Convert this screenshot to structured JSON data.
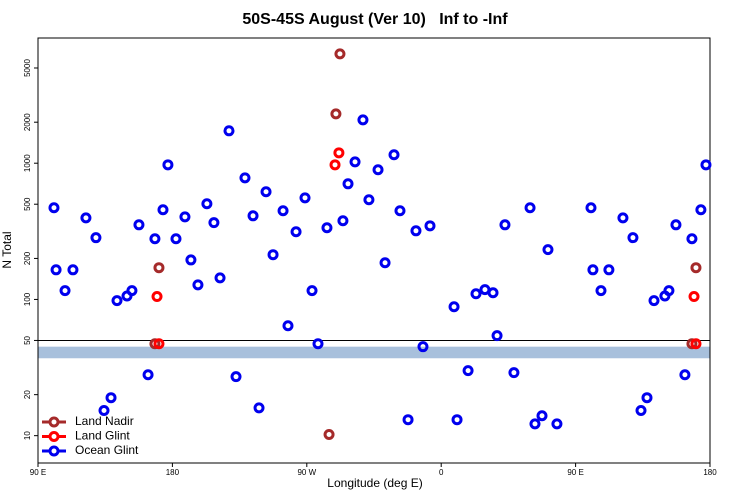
{
  "chart_data": {
    "type": "scatter",
    "title": "50S-45S August (Ver 10)   Inf to -Inf",
    "xlabel": "Longitude (deg E)",
    "ylabel": "N Total",
    "xlim": [
      90,
      540
    ],
    "ylim": [
      6.3,
      8300
    ],
    "log_y": true,
    "xticks": [
      {
        "value": 90,
        "label": "90 E"
      },
      {
        "value": 180,
        "label": "180"
      },
      {
        "value": 270,
        "label": "90 W"
      },
      {
        "value": 360,
        "label": "0"
      },
      {
        "value": 450,
        "label": "90 E"
      },
      {
        "value": 540,
        "label": "180"
      }
    ],
    "yticks": [
      10,
      20,
      50,
      100,
      200,
      500,
      1000,
      2000,
      5000
    ],
    "hline": 50,
    "band": {
      "range": [
        37,
        45
      ],
      "color": "#a8c0dc"
    },
    "legend": "bottom-left",
    "series": [
      {
        "name": "Land Nadir",
        "color": "#a52a2a",
        "x": [
          171.0,
          168.3,
          289.5,
          292.2,
          284.9,
          530.6,
          527.9
        ],
        "values": [
          171,
          47.3,
          2303,
          6350,
          10.2,
          171,
          47.3
        ]
      },
      {
        "name": "Land Glint",
        "color": "#ff0000",
        "x": [
          169.7,
          171.0,
          288.9,
          291.5,
          529.3,
          530.6
        ],
        "values": [
          105,
          47.3,
          973,
          1192,
          105,
          47.3
        ]
      },
      {
        "name": "Ocean Glint",
        "color": "#0000ee",
        "x": [
          100.7,
          102.1,
          108.1,
          113.4,
          122.1,
          128.8,
          134.2,
          138.9,
          142.9,
          149.6,
          152.9,
          157.6,
          163.7,
          168.3,
          173.7,
          177.0,
          182.4,
          188.4,
          192.4,
          197.1,
          203.1,
          207.8,
          211.9,
          217.9,
          222.6,
          228.6,
          234.0,
          238.0,
          242.7,
          247.4,
          254.1,
          257.4,
          262.8,
          268.8,
          273.5,
          277.5,
          283.5,
          294.2,
          297.6,
          302.3,
          307.6,
          311.6,
          317.7,
          322.4,
          328.4,
          332.4,
          337.8,
          343.1,
          347.8,
          352.5,
          368.6,
          370.6,
          378.0,
          383.3,
          389.3,
          394.7,
          397.4,
          402.7,
          408.7,
          419.5,
          422.8,
          427.5,
          431.5,
          437.5,
          460.3,
          461.6,
          467.0,
          472.3,
          481.7,
          488.4,
          493.8,
          497.8,
          502.5,
          509.8,
          512.5,
          517.2,
          523.2,
          527.9,
          533.9,
          537.3
        ],
        "values": [
          471,
          165,
          116,
          165,
          397,
          284,
          15.3,
          19.0,
          98,
          106,
          116,
          353,
          28.0,
          279,
          455,
          973,
          279,
          404,
          195,
          128,
          504,
          366,
          144,
          1729,
          27.1,
          781,
          411,
          16.0,
          617,
          213,
          448,
          64.1,
          314,
          557,
          116,
          47.3,
          336,
          378,
          706,
          1023,
          2080,
          539,
          895,
          186,
          1153,
          448,
          13.1,
          319,
          45.0,
          347,
          88.4,
          13.1,
          30.0,
          110,
          118,
          112,
          54.2,
          353,
          29.0,
          471,
          12.2,
          14.0,
          232,
          12.2,
          471,
          165,
          116,
          165,
          397,
          284,
          15.3,
          19.0,
          98,
          106,
          116,
          353,
          28.0,
          279,
          455,
          973
        ]
      }
    ]
  }
}
